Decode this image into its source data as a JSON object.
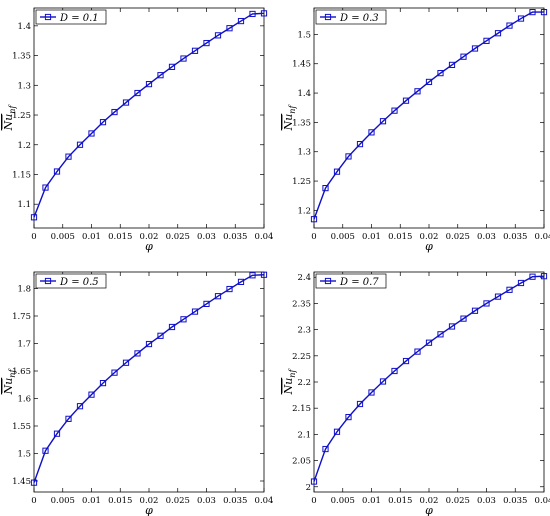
{
  "chart_data": [
    {
      "type": "line",
      "legend": "D = 0.1",
      "legend_position": "top-left",
      "xlabel": "φ",
      "ylabel": "Nu_nf",
      "xlim": [
        0,
        0.04
      ],
      "ylim": [
        1.06,
        1.43
      ],
      "xticks": [
        "0",
        "0.005",
        "0.01",
        "0.015",
        "0.02",
        "0.025",
        "0.03",
        "0.035",
        "0.04"
      ],
      "yticks": [
        "1.1",
        "1.15",
        "1.2",
        "1.25",
        "1.3",
        "1.35",
        "1.4"
      ],
      "x": [
        0,
        0.002,
        0.004,
        0.006,
        0.008,
        0.01,
        0.012,
        0.014,
        0.016,
        0.018,
        0.02,
        0.022,
        0.024,
        0.026,
        0.028,
        0.03,
        0.032,
        0.034,
        0.036,
        0.038,
        0.04
      ],
      "values": [
        1.078,
        1.128,
        1.155,
        1.18,
        1.2,
        1.219,
        1.238,
        1.255,
        1.271,
        1.287,
        1.302,
        1.317,
        1.331,
        1.345,
        1.358,
        1.371,
        1.384,
        1.396,
        1.408,
        1.42,
        1.421
      ]
    },
    {
      "type": "line",
      "legend": "D = 0.3",
      "legend_position": "top-left",
      "xlabel": "φ",
      "ylabel": "Nu_nf",
      "xlim": [
        0,
        0.04
      ],
      "ylim": [
        1.17,
        1.545
      ],
      "xticks": [
        "0",
        "0.005",
        "0.01",
        "0.015",
        "0.02",
        "0.025",
        "0.03",
        "0.035",
        "0.04"
      ],
      "yticks": [
        "1.2",
        "1.25",
        "1.3",
        "1.35",
        "1.4",
        "1.45",
        "1.5"
      ],
      "x": [
        0,
        0.002,
        0.004,
        0.006,
        0.008,
        0.01,
        0.012,
        0.014,
        0.016,
        0.018,
        0.02,
        0.022,
        0.024,
        0.026,
        0.028,
        0.03,
        0.032,
        0.034,
        0.036,
        0.038,
        0.04
      ],
      "values": [
        1.185,
        1.238,
        1.266,
        1.292,
        1.313,
        1.333,
        1.352,
        1.37,
        1.387,
        1.403,
        1.419,
        1.434,
        1.448,
        1.462,
        1.476,
        1.489,
        1.502,
        1.515,
        1.527,
        1.538,
        1.538
      ]
    },
    {
      "type": "line",
      "legend": "D = 0.5",
      "legend_position": "top-left",
      "xlabel": "φ",
      "ylabel": "Nu_nf",
      "xlim": [
        0,
        0.04
      ],
      "ylim": [
        1.43,
        1.83
      ],
      "xticks": [
        "0",
        "0.005",
        "0.01",
        "0.015",
        "0.02",
        "0.025",
        "0.03",
        "0.035",
        "0.04"
      ],
      "yticks": [
        "1.45",
        "1.5",
        "1.55",
        "1.6",
        "1.65",
        "1.7",
        "1.75",
        "1.8"
      ],
      "x": [
        0,
        0.002,
        0.004,
        0.006,
        0.008,
        0.01,
        0.012,
        0.014,
        0.016,
        0.018,
        0.02,
        0.022,
        0.024,
        0.026,
        0.028,
        0.03,
        0.032,
        0.034,
        0.036,
        0.038,
        0.04
      ],
      "values": [
        1.447,
        1.505,
        1.536,
        1.563,
        1.586,
        1.607,
        1.628,
        1.647,
        1.665,
        1.682,
        1.699,
        1.714,
        1.73,
        1.744,
        1.758,
        1.772,
        1.786,
        1.799,
        1.812,
        1.824,
        1.825
      ]
    },
    {
      "type": "line",
      "legend": "D = 0.7",
      "legend_position": "top-left",
      "xlabel": "φ",
      "ylabel": "Nu_nf",
      "xlim": [
        0,
        0.04
      ],
      "ylim": [
        1.99,
        2.41
      ],
      "xticks": [
        "0",
        "0.005",
        "0.01",
        "0.015",
        "0.02",
        "0.025",
        "0.03",
        "0.035",
        "0.04"
      ],
      "yticks": [
        "2",
        "2.05",
        "2.1",
        "2.15",
        "2.2",
        "2.25",
        "2.3",
        "2.35",
        "2.4"
      ],
      "x": [
        0,
        0.002,
        0.004,
        0.006,
        0.008,
        0.01,
        0.012,
        0.014,
        0.016,
        0.018,
        0.02,
        0.022,
        0.024,
        0.026,
        0.028,
        0.03,
        0.032,
        0.034,
        0.036,
        0.038,
        0.04
      ],
      "values": [
        2.01,
        2.072,
        2.105,
        2.133,
        2.158,
        2.18,
        2.201,
        2.221,
        2.24,
        2.258,
        2.275,
        2.291,
        2.306,
        2.321,
        2.336,
        2.35,
        2.363,
        2.376,
        2.389,
        2.401,
        2.402
      ]
    }
  ],
  "colors": {
    "series": "#1010c8",
    "axis": "#000000",
    "legend_border": "#000000"
  }
}
